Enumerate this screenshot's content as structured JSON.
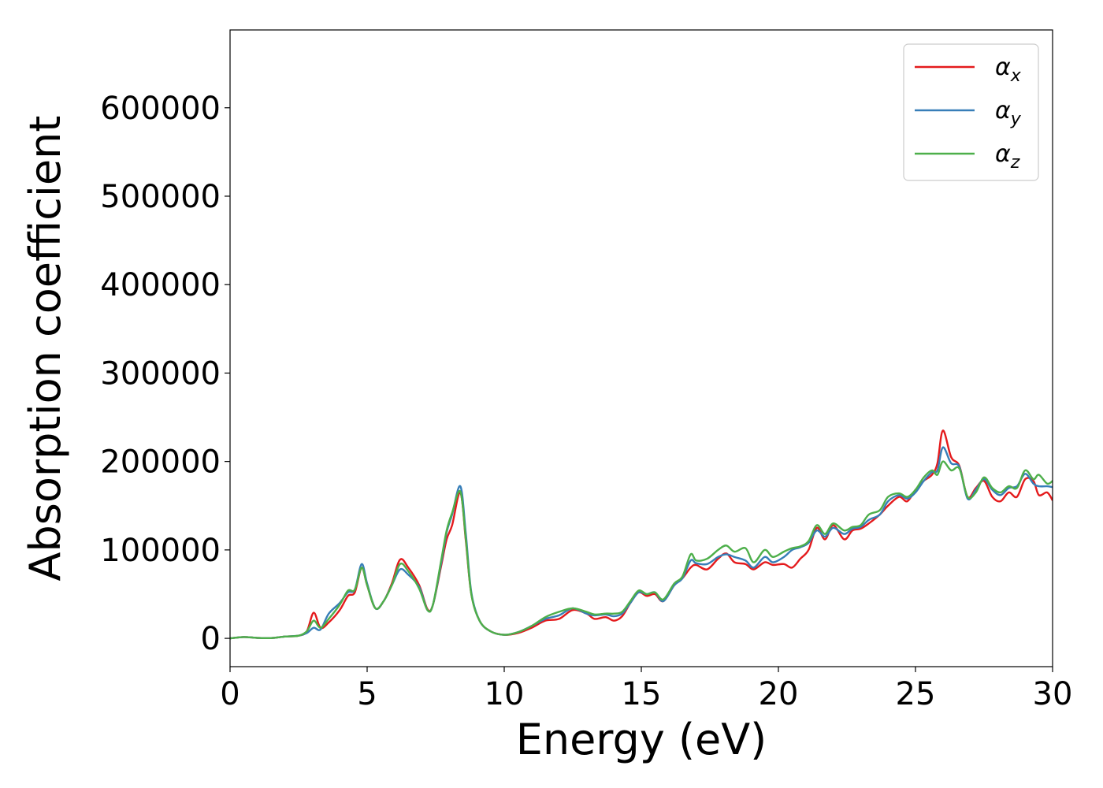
{
  "chart_data": {
    "type": "line",
    "title": "",
    "xlabel": "Energy (eV)",
    "ylabel": "Absorption coefficient",
    "xlim": [
      0,
      30
    ],
    "ylim": [
      -32000,
      688000
    ],
    "xticks": [
      0,
      5,
      10,
      15,
      20,
      25,
      30
    ],
    "yticks": [
      0,
      100000,
      200000,
      300000,
      400000,
      500000,
      600000
    ],
    "grid": false,
    "legend": "top-right",
    "series": [
      {
        "name": "α",
        "sub": "x",
        "color": "#e41a1c",
        "points": [
          [
            0,
            0
          ],
          [
            0.5,
            1500
          ],
          [
            1,
            500
          ],
          [
            1.5,
            300
          ],
          [
            2,
            2000
          ],
          [
            2.5,
            3000
          ],
          [
            2.8,
            8000
          ],
          [
            3.05,
            29000
          ],
          [
            3.3,
            12000
          ],
          [
            3.6,
            18000
          ],
          [
            4.0,
            32000
          ],
          [
            4.3,
            48000
          ],
          [
            4.55,
            52000
          ],
          [
            4.8,
            80000
          ],
          [
            5.0,
            60000
          ],
          [
            5.3,
            34000
          ],
          [
            5.6,
            42000
          ],
          [
            5.9,
            62000
          ],
          [
            6.2,
            89000
          ],
          [
            6.5,
            80000
          ],
          [
            6.9,
            60000
          ],
          [
            7.2,
            33000
          ],
          [
            7.4,
            38000
          ],
          [
            7.7,
            82000
          ],
          [
            7.9,
            112000
          ],
          [
            8.1,
            128000
          ],
          [
            8.4,
            165000
          ],
          [
            8.6,
            110000
          ],
          [
            8.8,
            50000
          ],
          [
            9.1,
            20000
          ],
          [
            9.5,
            8000
          ],
          [
            10,
            4000
          ],
          [
            10.5,
            6000
          ],
          [
            11,
            12000
          ],
          [
            11.5,
            20000
          ],
          [
            12,
            22000
          ],
          [
            12.5,
            32000
          ],
          [
            13,
            28000
          ],
          [
            13.3,
            22000
          ],
          [
            13.7,
            24000
          ],
          [
            14,
            20000
          ],
          [
            14.3,
            25000
          ],
          [
            14.6,
            40000
          ],
          [
            14.9,
            52000
          ],
          [
            15.2,
            48000
          ],
          [
            15.5,
            50000
          ],
          [
            15.8,
            42000
          ],
          [
            16.2,
            60000
          ],
          [
            16.5,
            68000
          ],
          [
            16.8,
            80000
          ],
          [
            17.0,
            83000
          ],
          [
            17.4,
            78000
          ],
          [
            17.8,
            90000
          ],
          [
            18.1,
            96000
          ],
          [
            18.4,
            86000
          ],
          [
            18.8,
            84000
          ],
          [
            19.1,
            78000
          ],
          [
            19.5,
            86000
          ],
          [
            19.8,
            83000
          ],
          [
            20.2,
            84000
          ],
          [
            20.5,
            80000
          ],
          [
            20.8,
            90000
          ],
          [
            21.1,
            100000
          ],
          [
            21.4,
            125000
          ],
          [
            21.7,
            112000
          ],
          [
            22.0,
            128000
          ],
          [
            22.4,
            112000
          ],
          [
            22.7,
            122000
          ],
          [
            23.0,
            124000
          ],
          [
            23.3,
            130000
          ],
          [
            23.7,
            140000
          ],
          [
            24.0,
            150000
          ],
          [
            24.4,
            160000
          ],
          [
            24.7,
            155000
          ],
          [
            25.0,
            168000
          ],
          [
            25.3,
            178000
          ],
          [
            25.6,
            185000
          ],
          [
            25.8,
            198000
          ],
          [
            26.0,
            235000
          ],
          [
            26.3,
            205000
          ],
          [
            26.6,
            195000
          ],
          [
            26.9,
            160000
          ],
          [
            27.2,
            170000
          ],
          [
            27.5,
            178000
          ],
          [
            27.8,
            160000
          ],
          [
            28.1,
            155000
          ],
          [
            28.4,
            165000
          ],
          [
            28.7,
            160000
          ],
          [
            29.0,
            180000
          ],
          [
            29.3,
            178000
          ],
          [
            29.5,
            162000
          ],
          [
            29.8,
            165000
          ],
          [
            30,
            156000
          ]
        ]
      },
      {
        "name": "α",
        "sub": "y",
        "color": "#377eb8",
        "points": [
          [
            0,
            0
          ],
          [
            0.5,
            1500
          ],
          [
            1,
            500
          ],
          [
            1.5,
            300
          ],
          [
            2,
            2000
          ],
          [
            2.5,
            3000
          ],
          [
            2.8,
            6000
          ],
          [
            3.05,
            12000
          ],
          [
            3.3,
            10000
          ],
          [
            3.6,
            28000
          ],
          [
            4.0,
            40000
          ],
          [
            4.3,
            52000
          ],
          [
            4.55,
            55000
          ],
          [
            4.8,
            84000
          ],
          [
            5.0,
            62000
          ],
          [
            5.3,
            34000
          ],
          [
            5.6,
            42000
          ],
          [
            5.9,
            60000
          ],
          [
            6.2,
            78000
          ],
          [
            6.5,
            72000
          ],
          [
            6.9,
            58000
          ],
          [
            7.2,
            32000
          ],
          [
            7.4,
            38000
          ],
          [
            7.7,
            85000
          ],
          [
            7.9,
            120000
          ],
          [
            8.1,
            140000
          ],
          [
            8.4,
            172000
          ],
          [
            8.6,
            118000
          ],
          [
            8.8,
            52000
          ],
          [
            9.1,
            20000
          ],
          [
            9.5,
            8000
          ],
          [
            10,
            4000
          ],
          [
            10.5,
            7000
          ],
          [
            11,
            14000
          ],
          [
            11.5,
            22000
          ],
          [
            12,
            26000
          ],
          [
            12.5,
            34000
          ],
          [
            13,
            28000
          ],
          [
            13.3,
            26000
          ],
          [
            13.7,
            27000
          ],
          [
            14,
            25000
          ],
          [
            14.3,
            28000
          ],
          [
            14.6,
            40000
          ],
          [
            14.9,
            52000
          ],
          [
            15.2,
            50000
          ],
          [
            15.5,
            52000
          ],
          [
            15.8,
            42000
          ],
          [
            16.2,
            60000
          ],
          [
            16.5,
            68000
          ],
          [
            16.8,
            88000
          ],
          [
            17.0,
            85000
          ],
          [
            17.4,
            84000
          ],
          [
            17.8,
            92000
          ],
          [
            18.1,
            95000
          ],
          [
            18.4,
            92000
          ],
          [
            18.8,
            88000
          ],
          [
            19.1,
            80000
          ],
          [
            19.5,
            92000
          ],
          [
            19.8,
            86000
          ],
          [
            20.2,
            92000
          ],
          [
            20.5,
            100000
          ],
          [
            20.8,
            103000
          ],
          [
            21.1,
            108000
          ],
          [
            21.4,
            122000
          ],
          [
            21.7,
            115000
          ],
          [
            22.0,
            125000
          ],
          [
            22.4,
            118000
          ],
          [
            22.7,
            124000
          ],
          [
            23.0,
            126000
          ],
          [
            23.3,
            134000
          ],
          [
            23.7,
            140000
          ],
          [
            24.0,
            155000
          ],
          [
            24.4,
            162000
          ],
          [
            24.7,
            158000
          ],
          [
            25.0,
            165000
          ],
          [
            25.3,
            178000
          ],
          [
            25.6,
            188000
          ],
          [
            25.8,
            190000
          ],
          [
            26.0,
            216000
          ],
          [
            26.3,
            198000
          ],
          [
            26.6,
            194000
          ],
          [
            26.9,
            158000
          ],
          [
            27.2,
            168000
          ],
          [
            27.5,
            180000
          ],
          [
            27.8,
            168000
          ],
          [
            28.1,
            162000
          ],
          [
            28.4,
            170000
          ],
          [
            28.7,
            172000
          ],
          [
            29.0,
            186000
          ],
          [
            29.3,
            175000
          ],
          [
            29.5,
            172000
          ],
          [
            29.8,
            172000
          ],
          [
            30,
            171000
          ]
        ]
      },
      {
        "name": "α",
        "sub": "z",
        "color": "#4daf4a",
        "points": [
          [
            0,
            0
          ],
          [
            0.5,
            1500
          ],
          [
            1,
            500
          ],
          [
            1.5,
            300
          ],
          [
            2,
            2000
          ],
          [
            2.5,
            3000
          ],
          [
            2.8,
            8000
          ],
          [
            3.05,
            20000
          ],
          [
            3.3,
            12000
          ],
          [
            3.6,
            22000
          ],
          [
            4.0,
            38000
          ],
          [
            4.3,
            54000
          ],
          [
            4.55,
            55000
          ],
          [
            4.8,
            80000
          ],
          [
            5.0,
            60000
          ],
          [
            5.3,
            34000
          ],
          [
            5.6,
            42000
          ],
          [
            5.9,
            60000
          ],
          [
            6.2,
            84000
          ],
          [
            6.5,
            76000
          ],
          [
            6.9,
            56000
          ],
          [
            7.2,
            32000
          ],
          [
            7.4,
            38000
          ],
          [
            7.7,
            88000
          ],
          [
            7.9,
            122000
          ],
          [
            8.1,
            142000
          ],
          [
            8.4,
            166000
          ],
          [
            8.6,
            112000
          ],
          [
            8.8,
            50000
          ],
          [
            9.1,
            20000
          ],
          [
            9.5,
            8000
          ],
          [
            10,
            4000
          ],
          [
            10.5,
            7000
          ],
          [
            11,
            14000
          ],
          [
            11.5,
            24000
          ],
          [
            12,
            30000
          ],
          [
            12.5,
            34000
          ],
          [
            13,
            30000
          ],
          [
            13.3,
            27000
          ],
          [
            13.7,
            28000
          ],
          [
            14,
            28000
          ],
          [
            14.3,
            30000
          ],
          [
            14.6,
            42000
          ],
          [
            14.9,
            54000
          ],
          [
            15.2,
            50000
          ],
          [
            15.5,
            52000
          ],
          [
            15.8,
            44000
          ],
          [
            16.2,
            62000
          ],
          [
            16.5,
            70000
          ],
          [
            16.8,
            95000
          ],
          [
            17.0,
            88000
          ],
          [
            17.4,
            90000
          ],
          [
            17.8,
            100000
          ],
          [
            18.1,
            105000
          ],
          [
            18.4,
            98000
          ],
          [
            18.8,
            102000
          ],
          [
            19.1,
            86000
          ],
          [
            19.5,
            100000
          ],
          [
            19.8,
            92000
          ],
          [
            20.2,
            98000
          ],
          [
            20.5,
            102000
          ],
          [
            20.8,
            104000
          ],
          [
            21.1,
            110000
          ],
          [
            21.4,
            128000
          ],
          [
            21.7,
            118000
          ],
          [
            22.0,
            130000
          ],
          [
            22.4,
            122000
          ],
          [
            22.7,
            126000
          ],
          [
            23.0,
            128000
          ],
          [
            23.3,
            140000
          ],
          [
            23.7,
            145000
          ],
          [
            24.0,
            160000
          ],
          [
            24.4,
            164000
          ],
          [
            24.7,
            160000
          ],
          [
            25.0,
            168000
          ],
          [
            25.3,
            182000
          ],
          [
            25.6,
            190000
          ],
          [
            25.8,
            185000
          ],
          [
            26.0,
            200000
          ],
          [
            26.3,
            190000
          ],
          [
            26.6,
            192000
          ],
          [
            26.9,
            160000
          ],
          [
            27.2,
            165000
          ],
          [
            27.5,
            182000
          ],
          [
            27.8,
            170000
          ],
          [
            28.1,
            165000
          ],
          [
            28.4,
            172000
          ],
          [
            28.7,
            170000
          ],
          [
            29.0,
            190000
          ],
          [
            29.3,
            180000
          ],
          [
            29.5,
            185000
          ],
          [
            29.8,
            175000
          ],
          [
            30,
            178000
          ]
        ]
      }
    ]
  }
}
